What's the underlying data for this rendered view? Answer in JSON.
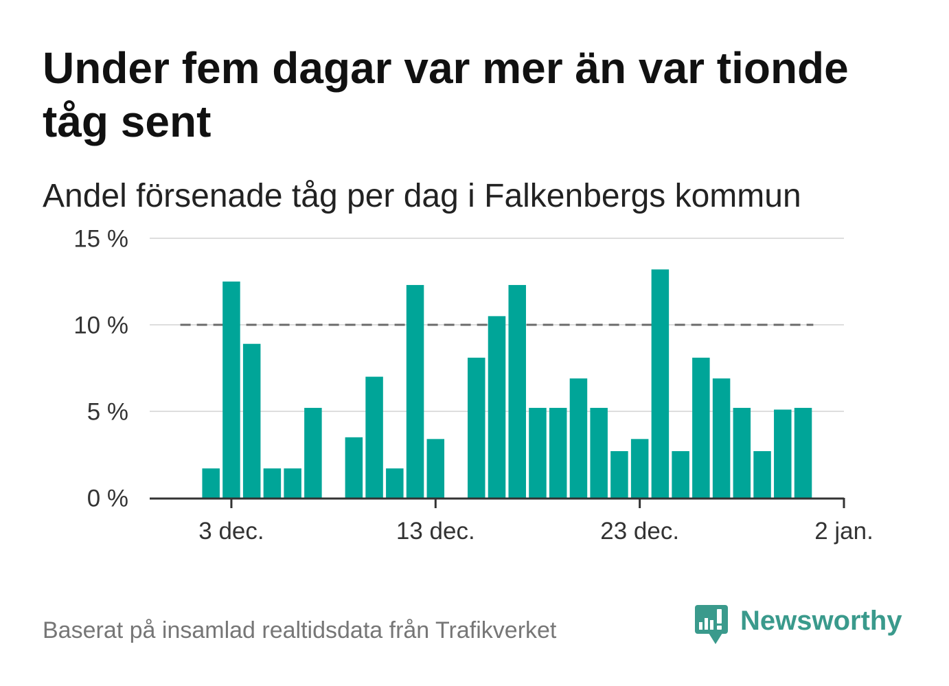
{
  "chart_data": {
    "type": "bar",
    "title": "Under fem dagar var mer än var tionde tåg sent",
    "subtitle": "Andel försenade tåg per dag i Falkenbergs kommun",
    "x": [
      "1 dec.",
      "2 dec.",
      "3 dec.",
      "4 dec.",
      "5 dec.",
      "6 dec.",
      "7 dec.",
      "8 dec.",
      "9 dec.",
      "10 dec.",
      "11 dec.",
      "12 dec.",
      "13 dec.",
      "14 dec.",
      "15 dec.",
      "16 dec.",
      "17 dec.",
      "18 dec.",
      "19 dec.",
      "20 dec.",
      "21 dec.",
      "22 dec.",
      "23 dec.",
      "24 dec.",
      "25 dec.",
      "26 dec.",
      "27 dec.",
      "28 dec.",
      "29 dec.",
      "30 dec.",
      "31 dec."
    ],
    "values": [
      0,
      1.7,
      12.5,
      8.9,
      1.7,
      1.7,
      5.2,
      0,
      3.5,
      7.0,
      1.7,
      12.3,
      3.4,
      0,
      8.1,
      10.5,
      12.3,
      5.2,
      5.2,
      6.9,
      5.2,
      2.7,
      3.4,
      13.2,
      2.7,
      8.1,
      6.9,
      5.2,
      2.7,
      5.1,
      5.2
    ],
    "xlim": [
      "29 nov.",
      "2 jan."
    ],
    "ylim": [
      0,
      15
    ],
    "x_ticks": [
      "3 dec.",
      "13 dec.",
      "23 dec.",
      "2 jan."
    ],
    "y_ticks": [
      0,
      5,
      10,
      15
    ],
    "y_tick_labels": [
      "0 %",
      "5 %",
      "10 %",
      "15 %"
    ],
    "reference_line": {
      "value": 10,
      "from": "1 dec.",
      "to": "31 dec.",
      "style": "dashed",
      "color": "#6b6b6b"
    },
    "grid": true,
    "colors": {
      "bars": "#00a598",
      "gridlines": "#dddddd",
      "axis": "#333333"
    }
  },
  "footer": {
    "source": "Baserat på insamlad realtidsdata från Trafikverket"
  },
  "logo": {
    "name": "Newsworthy",
    "icon": "newsworthy-logo-icon",
    "color": "#3a9a8c"
  }
}
